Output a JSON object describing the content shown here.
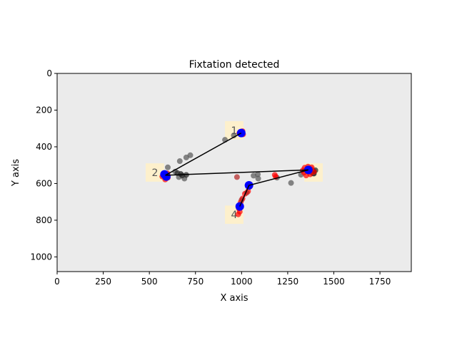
{
  "chart_data": {
    "type": "scatter",
    "title": "Fixtation detected",
    "xlabel": "X axis",
    "ylabel": "Y axis",
    "xlim": [
      0,
      1920
    ],
    "ylim": [
      1080,
      0
    ],
    "y_inverted": true,
    "grid": false,
    "background": "#ebebeb",
    "x_ticks": [
      "0",
      "250",
      "500",
      "750",
      "1000",
      "1250",
      "1500",
      "1750"
    ],
    "x_tick_values": [
      0,
      250,
      500,
      750,
      1000,
      1250,
      1500,
      1750
    ],
    "y_ticks": [
      "0",
      "200",
      "400",
      "600",
      "800",
      "1000"
    ],
    "y_tick_values": [
      0,
      200,
      400,
      600,
      800,
      1000
    ],
    "regions": [
      {
        "label": "1",
        "x0": 910,
        "x1": 1010,
        "y0": 260,
        "y1": 360
      },
      {
        "label": "2",
        "x0": 480,
        "x1": 580,
        "y0": 490,
        "y1": 590
      },
      {
        "label": "3",
        "x0": 1340,
        "x1": 1440,
        "y0": 490,
        "y1": 590
      },
      {
        "label": "4",
        "x0": 910,
        "x1": 1010,
        "y0": 720,
        "y1": 820
      }
    ],
    "region_color": "#fdf0cc",
    "series": [
      {
        "color": "#555555",
        "points": [
          [
            910,
            362
          ],
          [
            958,
            338
          ],
          [
            700,
            458
          ],
          [
            722,
            446
          ],
          [
            665,
            478
          ],
          [
            600,
            512
          ],
          [
            640,
            535
          ],
          [
            660,
            565
          ],
          [
            690,
            573
          ],
          [
            1065,
            557
          ],
          [
            1088,
            550
          ],
          [
            1090,
            573
          ],
          [
            1192,
            568
          ],
          [
            1268,
            597
          ],
          [
            1322,
            552
          ]
        ]
      },
      {
        "color": "#222222",
        "points": [
          [
            652,
            543
          ],
          [
            670,
            548
          ],
          [
            678,
            556
          ],
          [
            700,
            553
          ],
          [
            1380,
            540
          ],
          [
            1392,
            546
          ],
          [
            1392,
            535
          ],
          [
            1400,
            528
          ]
        ]
      },
      {
        "color": "#ff0000",
        "points": [
          [
            988,
            325
          ],
          [
            1005,
            315
          ],
          [
            1008,
            332
          ],
          [
            580,
            545
          ],
          [
            592,
            556
          ],
          [
            600,
            568
          ],
          [
            586,
            578
          ],
          [
            570,
            562
          ],
          [
            598,
            545
          ],
          [
            1342,
            514
          ],
          [
            1360,
            508
          ],
          [
            1378,
            522
          ],
          [
            1392,
            536
          ],
          [
            1372,
            550
          ],
          [
            1350,
            556
          ],
          [
            1338,
            540
          ],
          [
            1332,
            528
          ],
          [
            1380,
            512
          ],
          [
            1044,
            618
          ],
          [
            1035,
            642
          ],
          [
            1018,
            656
          ],
          [
            1005,
            682
          ],
          [
            995,
            702
          ],
          [
            988,
            718
          ],
          [
            985,
            736
          ],
          [
            990,
            754
          ],
          [
            982,
            768
          ],
          [
            1180,
            553
          ],
          [
            1185,
            563
          ]
        ]
      },
      {
        "color": "#b22222",
        "points": [
          [
            975,
            565
          ],
          [
            1028,
            650
          ],
          [
            1000,
            690
          ]
        ]
      },
      {
        "color": "#0000ff",
        "points": [
          [
            998,
            325
          ],
          [
            582,
            550
          ],
          [
            592,
            562
          ],
          [
            1362,
            526
          ],
          [
            1040,
            610
          ],
          [
            990,
            725
          ]
        ]
      }
    ],
    "scanpath": [
      [
        998,
        325
      ],
      [
        587,
        555
      ],
      [
        1362,
        526
      ],
      [
        1040,
        610
      ],
      [
        990,
        725
      ]
    ]
  }
}
